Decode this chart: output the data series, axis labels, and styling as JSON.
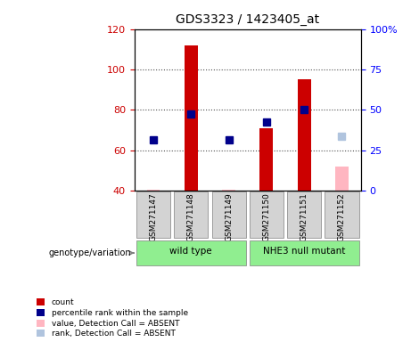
{
  "title": "GDS3323 / 1423405_at",
  "samples": [
    "GSM271147",
    "GSM271148",
    "GSM271149",
    "GSM271150",
    "GSM271151",
    "GSM271152"
  ],
  "count_values": [
    null,
    112,
    null,
    71,
    95,
    null
  ],
  "count_values_absent": [
    40.5,
    null,
    40.2,
    null,
    null,
    52
  ],
  "rank_values": [
    65,
    78,
    65,
    74,
    80,
    null
  ],
  "rank_values_absent": [
    null,
    null,
    null,
    null,
    null,
    67
  ],
  "ylim_left": [
    40,
    120
  ],
  "ylim_right": [
    0,
    100
  ],
  "yticks_left": [
    40,
    60,
    80,
    100,
    120
  ],
  "yticks_right": [
    0,
    25,
    50,
    75,
    100
  ],
  "ytick_labels_right": [
    "0",
    "25",
    "50",
    "75",
    "100%"
  ],
  "groups": [
    {
      "label": "wild type",
      "indices": [
        0,
        1,
        2
      ],
      "color": "#90EE90"
    },
    {
      "label": "NHE3 null mutant",
      "indices": [
        3,
        4,
        5
      ],
      "color": "#90EE90"
    }
  ],
  "group_label_prefix": "genotype/variation",
  "bar_color": "#CC0000",
  "bar_color_absent": "#FFB6C1",
  "rank_color": "#00008B",
  "rank_color_absent": "#B0C4DE",
  "bar_width": 0.35,
  "rank_marker_size": 6,
  "dotted_yticks": [
    60,
    80,
    100
  ],
  "baseline": 40
}
